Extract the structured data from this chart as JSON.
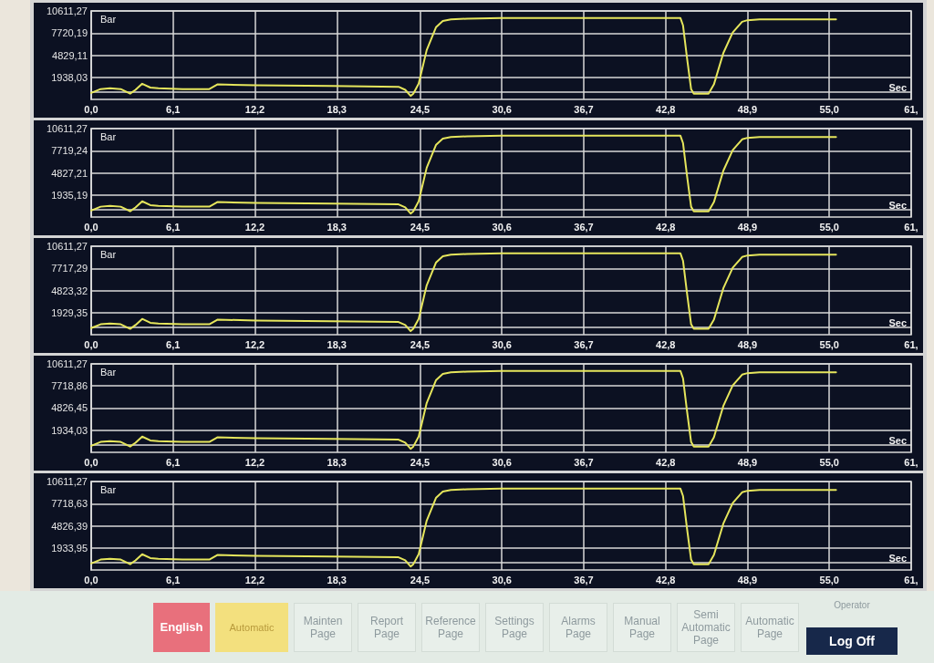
{
  "chart_data": [
    {
      "type": "line",
      "ylabel": "Bar",
      "xlabel": "Sec",
      "x": [
        0,
        0.7,
        1.4,
        2.2,
        2.9,
        3.3,
        3.8,
        4.4,
        5.0,
        6.8,
        8.8,
        9.4,
        12.3,
        17.9,
        22.9,
        23.4,
        23.8,
        24.0,
        24.4,
        25.0,
        25.7,
        26.2,
        26.8,
        28.0,
        30.6,
        36.7,
        43.9,
        44.1,
        44.4,
        44.7,
        44.9,
        46.0,
        46.4,
        47.1,
        47.8,
        48.5,
        48.9,
        49.8,
        55.5
      ],
      "series": [
        {
          "color": "#e6e65c",
          "values": [
            -100,
            400,
            500,
            400,
            -200,
            300,
            1100,
            600,
            500,
            400,
            400,
            1000,
            900,
            800,
            700,
            300,
            -500,
            -200,
            1100,
            5500,
            8500,
            9300,
            9500,
            9600,
            9700,
            9700,
            9700,
            8700,
            4400,
            400,
            -200,
            -200,
            1000,
            5100,
            7800,
            9200,
            9400,
            9500,
            9500
          ]
        }
      ],
      "xlim": [
        0,
        61.1
      ],
      "xticks": [
        {
          "value": 0,
          "label": "0,0"
        },
        {
          "value": 6.1,
          "label": "6,1"
        },
        {
          "value": 12.2,
          "label": "12,2"
        },
        {
          "value": 18.3,
          "label": "18,3"
        },
        {
          "value": 24.5,
          "label": "24,5"
        },
        {
          "value": 30.6,
          "label": "30,6"
        },
        {
          "value": 36.7,
          "label": "36,7"
        },
        {
          "value": 42.8,
          "label": "42,8"
        },
        {
          "value": 48.9,
          "label": "48,9"
        },
        {
          "value": 55.0,
          "label": "55,0"
        },
        {
          "value": 61.1,
          "label": "61,"
        }
      ],
      "ylim": [
        -953.05,
        10611.27
      ],
      "yticks": [
        {
          "value": 1938.03,
          "label": "1938,03"
        },
        {
          "value": 4829.11,
          "label": "4829,11"
        },
        {
          "value": 7720.19,
          "label": "7720,19"
        },
        {
          "value": 10611.27,
          "label": "10611,27"
        }
      ],
      "grid": true
    },
    {
      "type": "line",
      "ylabel": "Bar",
      "xlabel": "Sec",
      "x": [
        0,
        0.7,
        1.4,
        2.2,
        2.9,
        3.3,
        3.8,
        4.4,
        5.0,
        6.8,
        8.8,
        9.4,
        12.3,
        17.9,
        22.9,
        23.4,
        23.8,
        24.0,
        24.4,
        25.0,
        25.7,
        26.2,
        26.8,
        28.0,
        30.6,
        36.7,
        43.9,
        44.1,
        44.4,
        44.7,
        44.9,
        46.0,
        46.4,
        47.1,
        47.8,
        48.5,
        48.9,
        49.8,
        55.5
      ],
      "series": [
        {
          "color": "#e6e65c",
          "values": [
            -100,
            400,
            500,
            400,
            -200,
            300,
            1100,
            600,
            500,
            400,
            400,
            1000,
            900,
            800,
            700,
            300,
            -500,
            -200,
            1100,
            5500,
            8500,
            9300,
            9500,
            9600,
            9700,
            9700,
            9700,
            8700,
            4400,
            400,
            -200,
            -200,
            1000,
            5100,
            7800,
            9200,
            9400,
            9500,
            9500
          ]
        }
      ],
      "xlim": [
        0,
        61.1
      ],
      "xticks": [
        {
          "value": 0,
          "label": "0,0"
        },
        {
          "value": 6.1,
          "label": "6,1"
        },
        {
          "value": 12.2,
          "label": "12,2"
        },
        {
          "value": 18.3,
          "label": "18,3"
        },
        {
          "value": 24.5,
          "label": "24,5"
        },
        {
          "value": 30.6,
          "label": "30,6"
        },
        {
          "value": 36.7,
          "label": "36,7"
        },
        {
          "value": 42.8,
          "label": "42,8"
        },
        {
          "value": 48.9,
          "label": "48,9"
        },
        {
          "value": 55.0,
          "label": "55,0"
        },
        {
          "value": 61.1,
          "label": "61,"
        }
      ],
      "ylim": [
        -956.84,
        10611.27
      ],
      "yticks": [
        {
          "value": 1935.19,
          "label": "1935,19"
        },
        {
          "value": 4827.21,
          "label": "4827,21"
        },
        {
          "value": 7719.24,
          "label": "7719,24"
        },
        {
          "value": 10611.27,
          "label": "10611,27"
        }
      ],
      "grid": true
    },
    {
      "type": "line",
      "ylabel": "Bar",
      "xlabel": "Sec",
      "x": [
        0,
        0.7,
        1.4,
        2.2,
        2.9,
        3.3,
        3.8,
        4.4,
        5.0,
        6.8,
        8.8,
        9.4,
        12.3,
        17.9,
        22.9,
        23.4,
        23.8,
        24.0,
        24.4,
        25.0,
        25.7,
        26.2,
        26.8,
        28.0,
        30.6,
        36.7,
        43.9,
        44.1,
        44.4,
        44.7,
        44.9,
        46.0,
        46.4,
        47.1,
        47.8,
        48.5,
        48.9,
        49.8,
        55.5
      ],
      "series": [
        {
          "color": "#e6e65c",
          "values": [
            -100,
            400,
            500,
            400,
            -200,
            300,
            1100,
            600,
            500,
            400,
            400,
            1000,
            900,
            800,
            700,
            300,
            -500,
            -200,
            1100,
            5500,
            8500,
            9300,
            9500,
            9600,
            9700,
            9700,
            9700,
            8700,
            4400,
            400,
            -200,
            -200,
            1000,
            5100,
            7800,
            9200,
            9400,
            9500,
            9500
          ]
        }
      ],
      "xlim": [
        0,
        61.1
      ],
      "xticks": [
        {
          "value": 0,
          "label": "0,0"
        },
        {
          "value": 6.1,
          "label": "6,1"
        },
        {
          "value": 12.2,
          "label": "12,2"
        },
        {
          "value": 18.3,
          "label": "18,3"
        },
        {
          "value": 24.5,
          "label": "24,5"
        },
        {
          "value": 30.6,
          "label": "30,6"
        },
        {
          "value": 36.7,
          "label": "36,7"
        },
        {
          "value": 42.8,
          "label": "42,8"
        },
        {
          "value": 48.9,
          "label": "48,9"
        },
        {
          "value": 55.0,
          "label": "55,0"
        },
        {
          "value": 61.1,
          "label": "61,"
        }
      ],
      "ylim": [
        -964.62,
        10611.27
      ],
      "yticks": [
        {
          "value": 1929.35,
          "label": "1929,35"
        },
        {
          "value": 4823.32,
          "label": "4823,32"
        },
        {
          "value": 7717.29,
          "label": "7717,29"
        },
        {
          "value": 10611.27,
          "label": "10611,27"
        }
      ],
      "grid": true
    },
    {
      "type": "line",
      "ylabel": "Bar",
      "xlabel": "Sec",
      "x": [
        0,
        0.7,
        1.4,
        2.2,
        2.9,
        3.3,
        3.8,
        4.4,
        5.0,
        6.8,
        8.8,
        9.4,
        12.3,
        17.9,
        22.9,
        23.4,
        23.8,
        24.0,
        24.4,
        25.0,
        25.7,
        26.2,
        26.8,
        28.0,
        30.6,
        36.7,
        43.9,
        44.1,
        44.4,
        44.7,
        44.9,
        46.0,
        46.4,
        47.1,
        47.8,
        48.5,
        48.9,
        49.8,
        55.5
      ],
      "series": [
        {
          "color": "#e6e65c",
          "values": [
            -100,
            400,
            500,
            400,
            -200,
            300,
            1100,
            600,
            500,
            400,
            400,
            1000,
            900,
            800,
            700,
            300,
            -500,
            -200,
            1100,
            5500,
            8500,
            9300,
            9500,
            9600,
            9700,
            9700,
            9700,
            8700,
            4400,
            400,
            -200,
            -200,
            1000,
            5100,
            7800,
            9200,
            9400,
            9500,
            9500
          ]
        }
      ],
      "xlim": [
        0,
        61.1
      ],
      "xticks": [
        {
          "value": 0,
          "label": "0,0"
        },
        {
          "value": 6.1,
          "label": "6,1"
        },
        {
          "value": 12.2,
          "label": "12,2"
        },
        {
          "value": 18.3,
          "label": "18,3"
        },
        {
          "value": 24.5,
          "label": "24,5"
        },
        {
          "value": 30.6,
          "label": "30,6"
        },
        {
          "value": 36.7,
          "label": "36,7"
        },
        {
          "value": 42.8,
          "label": "42,8"
        },
        {
          "value": 48.9,
          "label": "48,9"
        },
        {
          "value": 55.0,
          "label": "55,0"
        },
        {
          "value": 61.1,
          "label": "61,"
        }
      ],
      "ylim": [
        -958.39,
        10611.27
      ],
      "yticks": [
        {
          "value": 1934.03,
          "label": "1934,03"
        },
        {
          "value": 4826.45,
          "label": "4826,45"
        },
        {
          "value": 7718.86,
          "label": "7718,86"
        },
        {
          "value": 10611.27,
          "label": "10611,27"
        }
      ],
      "grid": true
    },
    {
      "type": "line",
      "ylabel": "Bar",
      "xlabel": "Sec",
      "x": [
        0,
        0.7,
        1.4,
        2.2,
        2.9,
        3.3,
        3.8,
        4.4,
        5.0,
        6.8,
        8.8,
        9.4,
        12.3,
        17.9,
        22.9,
        23.4,
        23.8,
        24.0,
        24.4,
        25.0,
        25.7,
        26.2,
        26.8,
        28.0,
        30.6,
        36.7,
        43.9,
        44.1,
        44.4,
        44.7,
        44.9,
        46.0,
        46.4,
        47.1,
        47.8,
        48.5,
        48.9,
        49.8,
        55.5
      ],
      "series": [
        {
          "color": "#e6e65c",
          "values": [
            -100,
            400,
            500,
            400,
            -200,
            300,
            1100,
            600,
            500,
            400,
            400,
            1000,
            900,
            800,
            700,
            300,
            -500,
            -200,
            1100,
            5500,
            8500,
            9300,
            9500,
            9600,
            9700,
            9700,
            9700,
            8700,
            4400,
            400,
            -200,
            -200,
            1000,
            5100,
            7800,
            9200,
            9400,
            9500,
            9500
          ]
        }
      ],
      "xlim": [
        0,
        61.1
      ],
      "xticks": [
        {
          "value": 0,
          "label": "0,0"
        },
        {
          "value": 6.1,
          "label": "6,1"
        },
        {
          "value": 12.2,
          "label": "12,2"
        },
        {
          "value": 18.3,
          "label": "18,3"
        },
        {
          "value": 24.5,
          "label": "24,5"
        },
        {
          "value": 30.6,
          "label": "30,6"
        },
        {
          "value": 36.7,
          "label": "36,7"
        },
        {
          "value": 42.8,
          "label": "42,8"
        },
        {
          "value": 48.9,
          "label": "48,9"
        },
        {
          "value": 55.0,
          "label": "55,0"
        },
        {
          "value": 61.1,
          "label": "61,"
        }
      ],
      "ylim": [
        -958.49,
        10611.27
      ],
      "yticks": [
        {
          "value": 1933.95,
          "label": "1933,95"
        },
        {
          "value": 4826.39,
          "label": "4826,39"
        },
        {
          "value": 7718.63,
          "label": "7718,63"
        },
        {
          "value": 10611.27,
          "label": "10611,27"
        }
      ],
      "grid": true
    },
    {
      "type": "other",
      "annotations": [
        "English",
        "Automatic",
        "Mainten Page",
        "Report Page",
        "Reference Page",
        "Settings Page",
        "Alarms Page",
        "Manual Page",
        "Semi Automatic Page",
        "Automatic Page",
        "Operator",
        "Log Off"
      ]
    }
  ]
}
